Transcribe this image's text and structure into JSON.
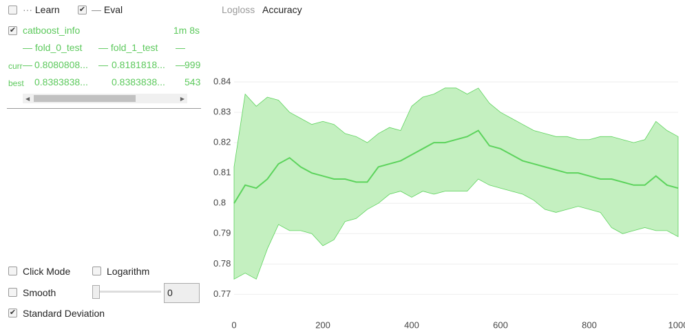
{
  "top_legend": {
    "learn": {
      "label": "Learn",
      "checked": false
    },
    "eval": {
      "label": "Eval",
      "checked": true
    }
  },
  "run": {
    "name": "catboost_info",
    "checked": true,
    "time": "1m 8s",
    "columns": [
      "fold_0_test",
      "fold_1_test"
    ],
    "rows": [
      {
        "label": "curr",
        "values": [
          "0.8080808...",
          "0.8181818..."
        ],
        "iteration": 999
      },
      {
        "label": "best",
        "values": [
          "0.8383838...",
          "0.8383838..."
        ],
        "iteration": 543
      }
    ]
  },
  "tabs": [
    "Logloss",
    "Accuracy"
  ],
  "active_tab": 1,
  "controls": {
    "click_mode": {
      "label": "Click Mode",
      "checked": false
    },
    "logarithm": {
      "label": "Logarithm",
      "checked": false
    },
    "smooth": {
      "label": "Smooth",
      "checked": false,
      "value": 0
    },
    "std": {
      "label": "Standard Deviation",
      "checked": true
    }
  },
  "chart_data": {
    "type": "line",
    "grid": true,
    "x": [
      0,
      25,
      50,
      75,
      100,
      125,
      150,
      175,
      200,
      225,
      250,
      275,
      300,
      325,
      350,
      375,
      400,
      425,
      450,
      475,
      500,
      525,
      550,
      575,
      600,
      625,
      650,
      675,
      700,
      725,
      750,
      775,
      800,
      825,
      850,
      875,
      900,
      925,
      950,
      975,
      1000
    ],
    "series": [
      {
        "color": "#5cd35c",
        "band_color": "#c4f0c0",
        "values": [
          0.8,
          0.806,
          0.805,
          0.808,
          0.813,
          0.815,
          0.812,
          0.81,
          0.809,
          0.808,
          0.808,
          0.807,
          0.807,
          0.812,
          0.813,
          0.814,
          0.816,
          0.818,
          0.82,
          0.82,
          0.821,
          0.822,
          0.824,
          0.819,
          0.818,
          0.816,
          0.814,
          0.813,
          0.812,
          0.811,
          0.81,
          0.81,
          0.809,
          0.808,
          0.808,
          0.807,
          0.806,
          0.806,
          0.809,
          0.806,
          0.805
        ],
        "upper": [
          0.812,
          0.836,
          0.832,
          0.835,
          0.834,
          0.83,
          0.828,
          0.826,
          0.827,
          0.826,
          0.823,
          0.822,
          0.82,
          0.823,
          0.825,
          0.824,
          0.832,
          0.835,
          0.836,
          0.838,
          0.838,
          0.836,
          0.838,
          0.833,
          0.83,
          0.828,
          0.826,
          0.824,
          0.823,
          0.822,
          0.822,
          0.821,
          0.821,
          0.822,
          0.822,
          0.821,
          0.82,
          0.821,
          0.827,
          0.824,
          0.822
        ],
        "lower": [
          0.775,
          0.777,
          0.775,
          0.785,
          0.793,
          0.791,
          0.791,
          0.79,
          0.786,
          0.788,
          0.794,
          0.795,
          0.798,
          0.8,
          0.803,
          0.804,
          0.802,
          0.804,
          0.803,
          0.804,
          0.804,
          0.804,
          0.808,
          0.806,
          0.805,
          0.804,
          0.803,
          0.801,
          0.798,
          0.797,
          0.798,
          0.799,
          0.798,
          0.797,
          0.792,
          0.79,
          0.791,
          0.792,
          0.791,
          0.791,
          0.789
        ]
      }
    ],
    "xlim": [
      0,
      1000
    ],
    "xticks": [
      0,
      200,
      400,
      600,
      800,
      1000
    ],
    "ylim": [
      0.766,
      0.845
    ],
    "yticks": [
      0.77,
      0.78,
      0.79,
      0.8,
      0.81,
      0.82,
      0.83,
      0.84
    ]
  }
}
